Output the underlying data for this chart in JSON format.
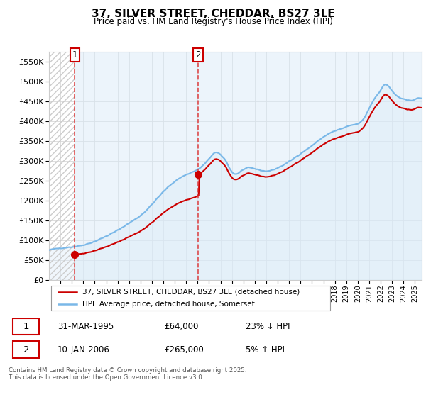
{
  "title": "37, SILVER STREET, CHEDDAR, BS27 3LE",
  "subtitle": "Price paid vs. HM Land Registry's House Price Index (HPI)",
  "legend_entry1": "37, SILVER STREET, CHEDDAR, BS27 3LE (detached house)",
  "legend_entry2": "HPI: Average price, detached house, Somerset",
  "annotation1_date": "31-MAR-1995",
  "annotation1_price": "£64,000",
  "annotation1_hpi": "23% ↓ HPI",
  "annotation2_date": "10-JAN-2006",
  "annotation2_price": "£265,000",
  "annotation2_hpi": "5% ↑ HPI",
  "footer": "Contains HM Land Registry data © Crown copyright and database right 2025.\nThis data is licensed under the Open Government Licence v3.0.",
  "sale_color": "#cc0000",
  "hpi_color": "#7ab8e8",
  "hpi_fill_color": "#daeaf8",
  "hatch_color": "#bbbbbb",
  "grid_color": "#d8d8d8",
  "sale1_x": 1995.25,
  "sale1_y": 64000,
  "sale2_x": 2006.04,
  "sale2_y": 265000,
  "ylim": [
    0,
    575000
  ],
  "yticks": [
    0,
    50000,
    100000,
    150000,
    200000,
    250000,
    300000,
    350000,
    400000,
    450000,
    500000,
    550000
  ],
  "xlim_left": 1993.0,
  "xlim_right": 2025.6
}
